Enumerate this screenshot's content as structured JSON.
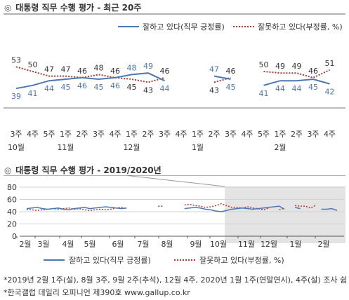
{
  "titles": {
    "main_mark": "◎",
    "main": "대통령 직무 수행 평가 - 최근 20주",
    "sub_mark": "◎",
    "sub": "대통령 직무 수행 평가 - 2019/2020년"
  },
  "legend": {
    "positive": "잘하고 있다(직무 긍정률)",
    "negative": "잘못하고 있다(부정률, %)"
  },
  "notes": [
    "*2019년 2월 1주(설), 8월 3주, 9월 2주(추석), 12월 4주, 2020년 1월 1주(연말연시), 4주(설) 조사 쉼",
    "*한국갤럽 데일리 오피니언 제390호 www.gallup.co.kr"
  ],
  "colors": {
    "positive": "#4a78b4",
    "negative": "#b5372e",
    "highlight": "#e4e4e4"
  },
  "chart_data": [
    {
      "type": "line",
      "title": "대통령 직무 수행 평가 - 최근 20주",
      "categories": [
        "3주",
        "4주",
        "5주",
        "1주",
        "2주",
        "3주",
        "4주",
        "1주",
        "2주",
        "3주",
        "4주",
        "1주",
        "2주",
        "3주",
        "4주",
        "5주",
        "1주",
        "2주",
        "3주",
        "4주"
      ],
      "month_labels": [
        {
          "label": "10월",
          "index": 0
        },
        {
          "label": "11월",
          "index": 3
        },
        {
          "label": "12월",
          "index": 7
        },
        {
          "label": "1월",
          "index": 11
        },
        {
          "label": "2월",
          "index": 16
        }
      ],
      "series": [
        {
          "name": "잘하고 있다(직무 긍정률)",
          "style": "solid",
          "values": [
            39,
            41,
            44,
            45,
            46,
            45,
            46,
            48,
            49,
            44,
            null,
            null,
            47,
            45,
            null,
            41,
            44,
            44,
            45,
            42
          ]
        },
        {
          "name": "잘못하고 있다(부정률, %)",
          "style": "dotted",
          "values": [
            53,
            50,
            47,
            47,
            46,
            48,
            46,
            45,
            43,
            46,
            null,
            null,
            43,
            46,
            null,
            50,
            49,
            49,
            46,
            51
          ]
        }
      ],
      "grid": false,
      "legend_position": "top-right"
    },
    {
      "type": "line",
      "title": "대통령 직무 수행 평가 - 2019/2020년",
      "ylim": [
        0,
        80
      ],
      "yticks": [
        0,
        20,
        40,
        60,
        80
      ],
      "x_month_labels": [
        "2월",
        "3월",
        "4월",
        "5월",
        "6월",
        "7월",
        "8월",
        "9월",
        "10월",
        "11월",
        "12월",
        "1월",
        "2월"
      ],
      "grid": true,
      "legend_position": "bottom",
      "series": [
        {
          "name": "잘하고 있다(직무 긍정률)",
          "style": "solid",
          "values": [
            45,
            46,
            47,
            45,
            44,
            45,
            46,
            44,
            43,
            45,
            46,
            47,
            45,
            46,
            47,
            48,
            47,
            46,
            45,
            46,
            null,
            null,
            null,
            null,
            null,
            null,
            null,
            null,
            null,
            null,
            45,
            46,
            47,
            46,
            44,
            43,
            41,
            40,
            42,
            44,
            45,
            46,
            45,
            44,
            45,
            46,
            47,
            48,
            49,
            44,
            null,
            47,
            45,
            null,
            41,
            null,
            44,
            44,
            45,
            42
          ]
        },
        {
          "name": "잘못하고 있다(부정률, %)",
          "style": "dotted",
          "values": [
            44,
            43,
            42,
            43,
            44,
            45,
            44,
            45,
            46,
            44,
            45,
            43,
            42,
            43,
            44,
            43,
            44,
            46,
            47,
            45,
            null,
            null,
            null,
            null,
            null,
            49,
            49,
            null,
            null,
            null,
            51,
            52,
            50,
            49,
            47,
            48,
            50,
            53,
            50,
            47,
            47,
            46,
            48,
            46,
            45,
            43,
            46,
            null,
            43,
            46,
            null,
            50,
            49,
            49,
            46,
            51,
            null,
            null,
            null,
            null
          ]
        }
      ]
    }
  ]
}
